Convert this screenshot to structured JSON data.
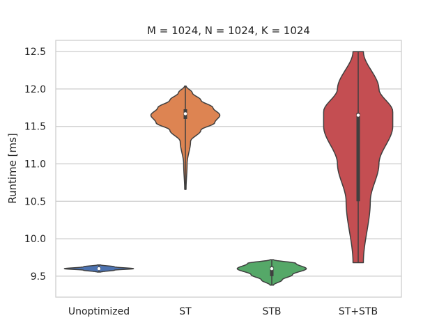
{
  "chart_data": {
    "type": "violin",
    "title": "M = 1024, N = 1024, K = 1024",
    "xlabel": "",
    "ylabel": "Runtime [ms]",
    "ylim": [
      9.22,
      12.65
    ],
    "yticks": [
      "9.5",
      "10.0",
      "10.5",
      "11.0",
      "11.5",
      "12.0",
      "12.5"
    ],
    "grid": "horizontal",
    "categories": [
      "Unoptimized",
      "ST",
      "STB",
      "ST+STB"
    ],
    "series": [
      {
        "category": "Unoptimized",
        "color": "#4c72b0",
        "min": 9.555,
        "max": 9.65,
        "q1": 9.59,
        "median": 9.6,
        "q3": 9.615,
        "profile": [
          [
            9.555,
            0.05
          ],
          [
            9.58,
            0.45
          ],
          [
            9.6,
            1.0
          ],
          [
            9.625,
            0.45
          ],
          [
            9.65,
            0.05
          ]
        ]
      },
      {
        "category": "ST",
        "color": "#dd8452",
        "min": 10.66,
        "max": 12.04,
        "q1": 11.6,
        "median": 11.67,
        "q3": 11.73,
        "profile": [
          [
            10.66,
            0.02
          ],
          [
            11.0,
            0.05
          ],
          [
            11.3,
            0.15
          ],
          [
            11.45,
            0.45
          ],
          [
            11.55,
            0.85
          ],
          [
            11.65,
            1.0
          ],
          [
            11.75,
            0.8
          ],
          [
            11.85,
            0.45
          ],
          [
            11.95,
            0.2
          ],
          [
            12.04,
            0.02
          ]
        ]
      },
      {
        "category": "STB",
        "color": "#55a868",
        "min": 9.38,
        "max": 9.72,
        "q1": 9.5,
        "median": 9.6,
        "q3": 9.63,
        "profile": [
          [
            9.38,
            0.05
          ],
          [
            9.45,
            0.3
          ],
          [
            9.52,
            0.6
          ],
          [
            9.6,
            1.0
          ],
          [
            9.67,
            0.7
          ],
          [
            9.72,
            0.05
          ]
        ]
      },
      {
        "category": "ST+STB",
        "color": "#c44e52",
        "min": 9.68,
        "max": 12.5,
        "q1": 10.5,
        "median": 11.65,
        "q3": 11.68,
        "profile": [
          [
            9.68,
            0.15
          ],
          [
            10.5,
            0.35
          ],
          [
            11.0,
            0.6
          ],
          [
            11.5,
            1.0
          ],
          [
            11.7,
            1.0
          ],
          [
            12.0,
            0.6
          ],
          [
            12.5,
            0.15
          ]
        ]
      }
    ]
  }
}
